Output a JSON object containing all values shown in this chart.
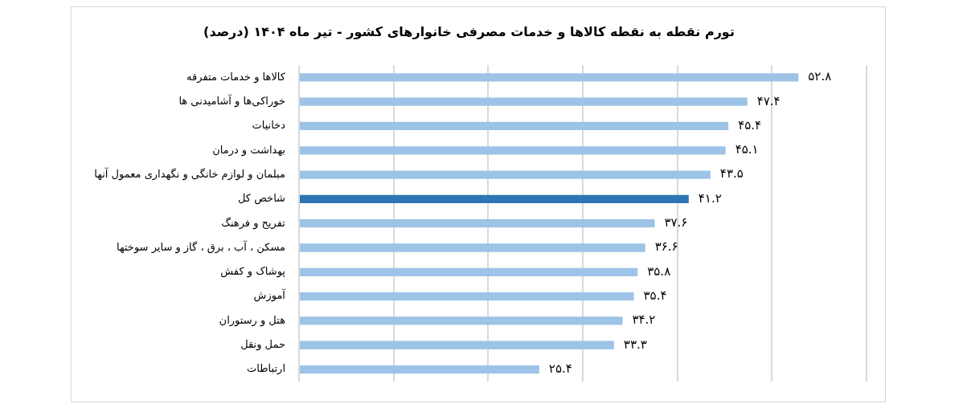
{
  "chart_data": {
    "type": "bar",
    "orientation": "horizontal",
    "title": "تورم نقطه به نقطه کالاها و خدمات مصرفی خانوارهای کشور - تیر ماه ۱۴۰۴ (درصد)",
    "categories": [
      "کالاها و خدمات متفرقه",
      "خوراکی‌ها و آشامیدنی ها",
      "دخانیات",
      "بهداشت و درمان",
      "مبلمان و لوازم خانگی و نگهداری معمول آنها",
      "شاخص کل",
      "تفریح و فرهنگ",
      "مسکن ، آب ، برق ، گاز و سایر سوختها",
      "پوشاک و کفش",
      "آموزش",
      "هتل و رستوران",
      "حمل ونقل",
      "ارتباطات"
    ],
    "values": [
      52.8,
      47.4,
      45.4,
      45.1,
      43.5,
      41.2,
      37.6,
      36.6,
      35.8,
      35.4,
      34.2,
      33.3,
      25.4
    ],
    "colors": [
      "#9dc3e6",
      "#9dc3e6",
      "#9dc3e6",
      "#9dc3e6",
      "#9dc3e6",
      "#2e75b6",
      "#9dc3e6",
      "#9dc3e6",
      "#9dc3e6",
      "#9dc3e6",
      "#9dc3e6",
      "#9dc3e6",
      "#9dc3e6"
    ],
    "value_labels": [
      "۵۲.۸",
      "۴۷.۴",
      "۴۵.۴",
      "۴۵.۱",
      "۴۳.۵",
      "۴۱.۲",
      "۳۷.۶",
      "۳۶.۶",
      "۳۵.۸",
      "۳۵.۴",
      "۳۴.۲",
      "۳۳.۳",
      "۲۵.۴"
    ],
    "xlim": [
      0,
      60
    ],
    "xticks": [
      {
        "value": 0,
        "label": null
      },
      {
        "value": 10,
        "label": null
      },
      {
        "value": 20,
        "label": null
      },
      {
        "value": 30,
        "label": null
      },
      {
        "value": 40,
        "label": null
      },
      {
        "value": 50,
        "label": null
      },
      {
        "value": 60,
        "label": null
      }
    ],
    "grid": "x",
    "tick_labels": "y"
  }
}
